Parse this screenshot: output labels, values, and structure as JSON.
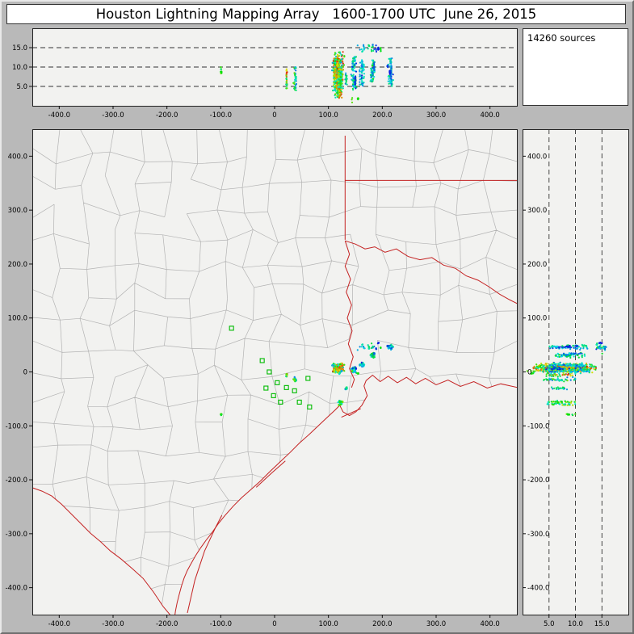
{
  "window": {
    "title": "Houston Lightning Mapping Array   1600-1700 UTC  June 26, 2015"
  },
  "sources_box": {
    "label": "14260 sources"
  },
  "style": {
    "frame_bg": "#b9b9b9",
    "panel_bg": "#f2f2f0",
    "panel_border": "#222222",
    "county_line": "#b3b3b3",
    "geo_border": "#c42222",
    "station": "#00bb00",
    "dash_line": "#333333"
  },
  "chart_data": {
    "type": "scatter",
    "title": "Houston Lightning Mapping Array",
    "time_utc": "1600-1700 UTC",
    "date": "June 26, 2015",
    "total_sources": 14260,
    "color_scale": {
      "meaning": "source time within 1600-1700 UTC",
      "start_color": "#0000dd",
      "end_color": "#dd0000"
    },
    "panels": {
      "alt_ew": {
        "id": "altitude-vs-east-west",
        "xlim_km": [
          -450,
          450
        ],
        "alt_lim_km": [
          0,
          20
        ],
        "alt_ticks": [
          5,
          10,
          15
        ],
        "alt_tick_labels": [
          "5.0",
          "10.0",
          "15.0"
        ],
        "alt_gridlines_km": [
          5,
          10,
          15
        ]
      },
      "plan": {
        "id": "plan-view",
        "xlim_km": [
          -450,
          450
        ],
        "ylim_km": [
          -450,
          450
        ],
        "xticks": [
          -400,
          -300,
          -200,
          -100,
          0,
          100,
          200,
          300,
          400
        ],
        "xtick_labels": [
          "-400.0",
          "-300.0",
          "-200.0",
          "-100.0",
          "0",
          "100.0",
          "200.0",
          "300.0",
          "400.0"
        ],
        "yticks": [
          400,
          300,
          200,
          100,
          0,
          -100,
          -200,
          -300,
          -400
        ],
        "ytick_labels": [
          "400.0",
          "300.0",
          "200.0",
          "100.0",
          "0",
          "-100.0",
          "-200.0",
          "-300.0",
          "-400.0"
        ]
      },
      "alt_ns": {
        "id": "north-south-vs-altitude",
        "alt_lim_km": [
          0,
          20
        ],
        "ylim_km": [
          -450,
          450
        ],
        "alt_ticks": [
          5,
          10,
          15
        ],
        "alt_tick_labels": [
          "5.0",
          "10.0",
          "15.0"
        ],
        "alt_gridlines_km": [
          5,
          10,
          15
        ]
      }
    },
    "clusters": [
      {
        "name": "main-storm",
        "x": 118,
        "y": 8,
        "sx": 13,
        "sy": 12,
        "alt_min": 2.0,
        "alt_max": 14.0,
        "n": 520,
        "t0": 0.15,
        "t1": 1.0
      },
      {
        "name": "east-cell-1",
        "x": 147,
        "y": 4,
        "sx": 6,
        "sy": 8,
        "alt_min": 4.0,
        "alt_max": 13.0,
        "n": 110,
        "t0": 0.0,
        "t1": 0.45
      },
      {
        "name": "east-cell-2",
        "x": 163,
        "y": 14,
        "sx": 5,
        "sy": 6,
        "alt_min": 5.0,
        "alt_max": 12.0,
        "n": 60,
        "t0": 0.0,
        "t1": 0.35
      },
      {
        "name": "northeast-cell",
        "x": 182,
        "y": 30,
        "sx": 7,
        "sy": 6,
        "alt_min": 6.0,
        "alt_max": 12.0,
        "n": 80,
        "t0": 0.05,
        "t1": 0.5
      },
      {
        "name": "far-northeast-cell",
        "x": 216,
        "y": 46,
        "sx": 9,
        "sy": 7,
        "alt_min": 5.0,
        "alt_max": 12.5,
        "n": 90,
        "t0": 0.0,
        "t1": 0.4
      },
      {
        "name": "anvil-high",
        "x": 175,
        "y": 45,
        "sx": 30,
        "sy": 12,
        "alt_min": 13.8,
        "alt_max": 15.8,
        "n": 45,
        "t0": 0.0,
        "t1": 0.5
      },
      {
        "name": "south-cell",
        "x": 122,
        "y": -58,
        "sx": 6,
        "sy": 7,
        "alt_min": 4.5,
        "alt_max": 10.0,
        "n": 55,
        "t0": 0.2,
        "t1": 0.7
      },
      {
        "name": "south-small-cell",
        "x": 133,
        "y": -30,
        "sx": 4,
        "sy": 4,
        "alt_min": 5.0,
        "alt_max": 9.0,
        "n": 18,
        "t0": 0.1,
        "t1": 0.4
      },
      {
        "name": "west-cell-1",
        "x": 22,
        "y": -6,
        "sx": 3,
        "sy": 5,
        "alt_min": 4.5,
        "alt_max": 9.5,
        "n": 28,
        "t0": 0.3,
        "t1": 0.95
      },
      {
        "name": "west-cell-2",
        "x": 38,
        "y": -14,
        "sx": 4,
        "sy": 6,
        "alt_min": 4.0,
        "alt_max": 10.0,
        "n": 40,
        "t0": 0.1,
        "t1": 0.6
      },
      {
        "name": "far-west-cell",
        "x": -99,
        "y": -78,
        "sx": 3,
        "sy": 4,
        "alt_min": 7.5,
        "alt_max": 10.0,
        "n": 16,
        "t0": 0.3,
        "t1": 0.7
      },
      {
        "name": "low-altitude-specks",
        "x": 145,
        "y": 0,
        "sx": 18,
        "sy": 10,
        "alt_min": 0.5,
        "alt_max": 2.2,
        "n": 10,
        "t0": 0.0,
        "t1": 0.6
      }
    ],
    "stations_km": [
      [
        -80,
        81
      ],
      [
        -23,
        21
      ],
      [
        -10,
        0
      ],
      [
        5,
        -20
      ],
      [
        -16,
        -30
      ],
      [
        22,
        -29
      ],
      [
        37,
        -35
      ],
      [
        11,
        -56
      ],
      [
        46,
        -56
      ],
      [
        62,
        -12
      ],
      [
        65,
        -65
      ],
      [
        -2,
        -44
      ]
    ],
    "borders_km": {
      "state_lines": [
        [
          [
            131,
            438
          ],
          [
            131,
            245
          ]
        ],
        [
          [
            131,
            355
          ],
          [
            452,
            355
          ]
        ],
        [
          [
            131,
            243
          ],
          [
            150,
            237
          ],
          [
            168,
            228
          ],
          [
            186,
            232
          ],
          [
            205,
            222
          ],
          [
            226,
            228
          ],
          [
            248,
            214
          ],
          [
            270,
            208
          ],
          [
            292,
            212
          ],
          [
            314,
            198
          ],
          [
            336,
            192
          ],
          [
            356,
            178
          ],
          [
            378,
            170
          ],
          [
            398,
            158
          ],
          [
            418,
            144
          ],
          [
            436,
            134
          ],
          [
            452,
            126
          ]
        ],
        [
          [
            131,
            243
          ],
          [
            139,
            218
          ],
          [
            131,
            196
          ],
          [
            141,
            172
          ],
          [
            133,
            148
          ],
          [
            143,
            124
          ],
          [
            135,
            100
          ],
          [
            144,
            76
          ],
          [
            137,
            52
          ],
          [
            146,
            28
          ],
          [
            139,
            6
          ],
          [
            148,
            -14
          ],
          [
            143,
            -29
          ]
        ]
      ],
      "coast": [
        [
          452,
          -29
        ],
        [
          420,
          -22
        ],
        [
          395,
          -30
        ],
        [
          370,
          -18
        ],
        [
          345,
          -27
        ],
        [
          322,
          -15
        ],
        [
          300,
          -24
        ],
        [
          280,
          -12
        ],
        [
          262,
          -22
        ],
        [
          245,
          -10
        ],
        [
          228,
          -20
        ],
        [
          211,
          -8
        ],
        [
          196,
          -18
        ],
        [
          182,
          -6
        ],
        [
          170,
          -16
        ],
        [
          166,
          -26
        ],
        [
          172,
          -44
        ],
        [
          162,
          -62
        ],
        [
          151,
          -74
        ],
        [
          139,
          -81
        ],
        [
          127,
          -74
        ],
        [
          121,
          -62
        ],
        [
          112,
          -71
        ],
        [
          98,
          -84
        ],
        [
          82,
          -99
        ],
        [
          64,
          -116
        ],
        [
          46,
          -132
        ],
        [
          28,
          -150
        ],
        [
          10,
          -167
        ],
        [
          -8,
          -184
        ],
        [
          -26,
          -202
        ],
        [
          -44,
          -218
        ],
        [
          -61,
          -233
        ],
        [
          -77,
          -249
        ],
        [
          -92,
          -266
        ],
        [
          -105,
          -282
        ],
        [
          -117,
          -299
        ],
        [
          -128,
          -313
        ],
        [
          -138,
          -327
        ],
        [
          -147,
          -341
        ],
        [
          -155,
          -355
        ],
        [
          -162,
          -368
        ],
        [
          -168,
          -382
        ],
        [
          -173,
          -397
        ],
        [
          -177,
          -412
        ],
        [
          -181,
          -428
        ],
        [
          -184,
          -443
        ],
        [
          -186,
          -457
        ]
      ],
      "rio_grande": [
        [
          -186,
          -460
        ],
        [
          -207,
          -435
        ],
        [
          -225,
          -408
        ],
        [
          -244,
          -383
        ],
        [
          -264,
          -365
        ],
        [
          -285,
          -347
        ],
        [
          -305,
          -332
        ],
        [
          -324,
          -314
        ],
        [
          -342,
          -299
        ],
        [
          -360,
          -281
        ],
        [
          -378,
          -263
        ],
        [
          -396,
          -245
        ],
        [
          -414,
          -230
        ],
        [
          -432,
          -221
        ],
        [
          -449,
          -215
        ]
      ],
      "barrier_islands": [
        [
          [
            -162,
            -447
          ],
          [
            -148,
            -386
          ],
          [
            -130,
            -332
          ],
          [
            -109,
            -287
          ],
          [
            -98,
            -266
          ]
        ],
        [
          [
            -34,
            -214
          ],
          [
            -6,
            -188
          ],
          [
            20,
            -165
          ]
        ],
        [
          [
            124,
            -84
          ],
          [
            160,
            -68
          ]
        ]
      ]
    }
  }
}
